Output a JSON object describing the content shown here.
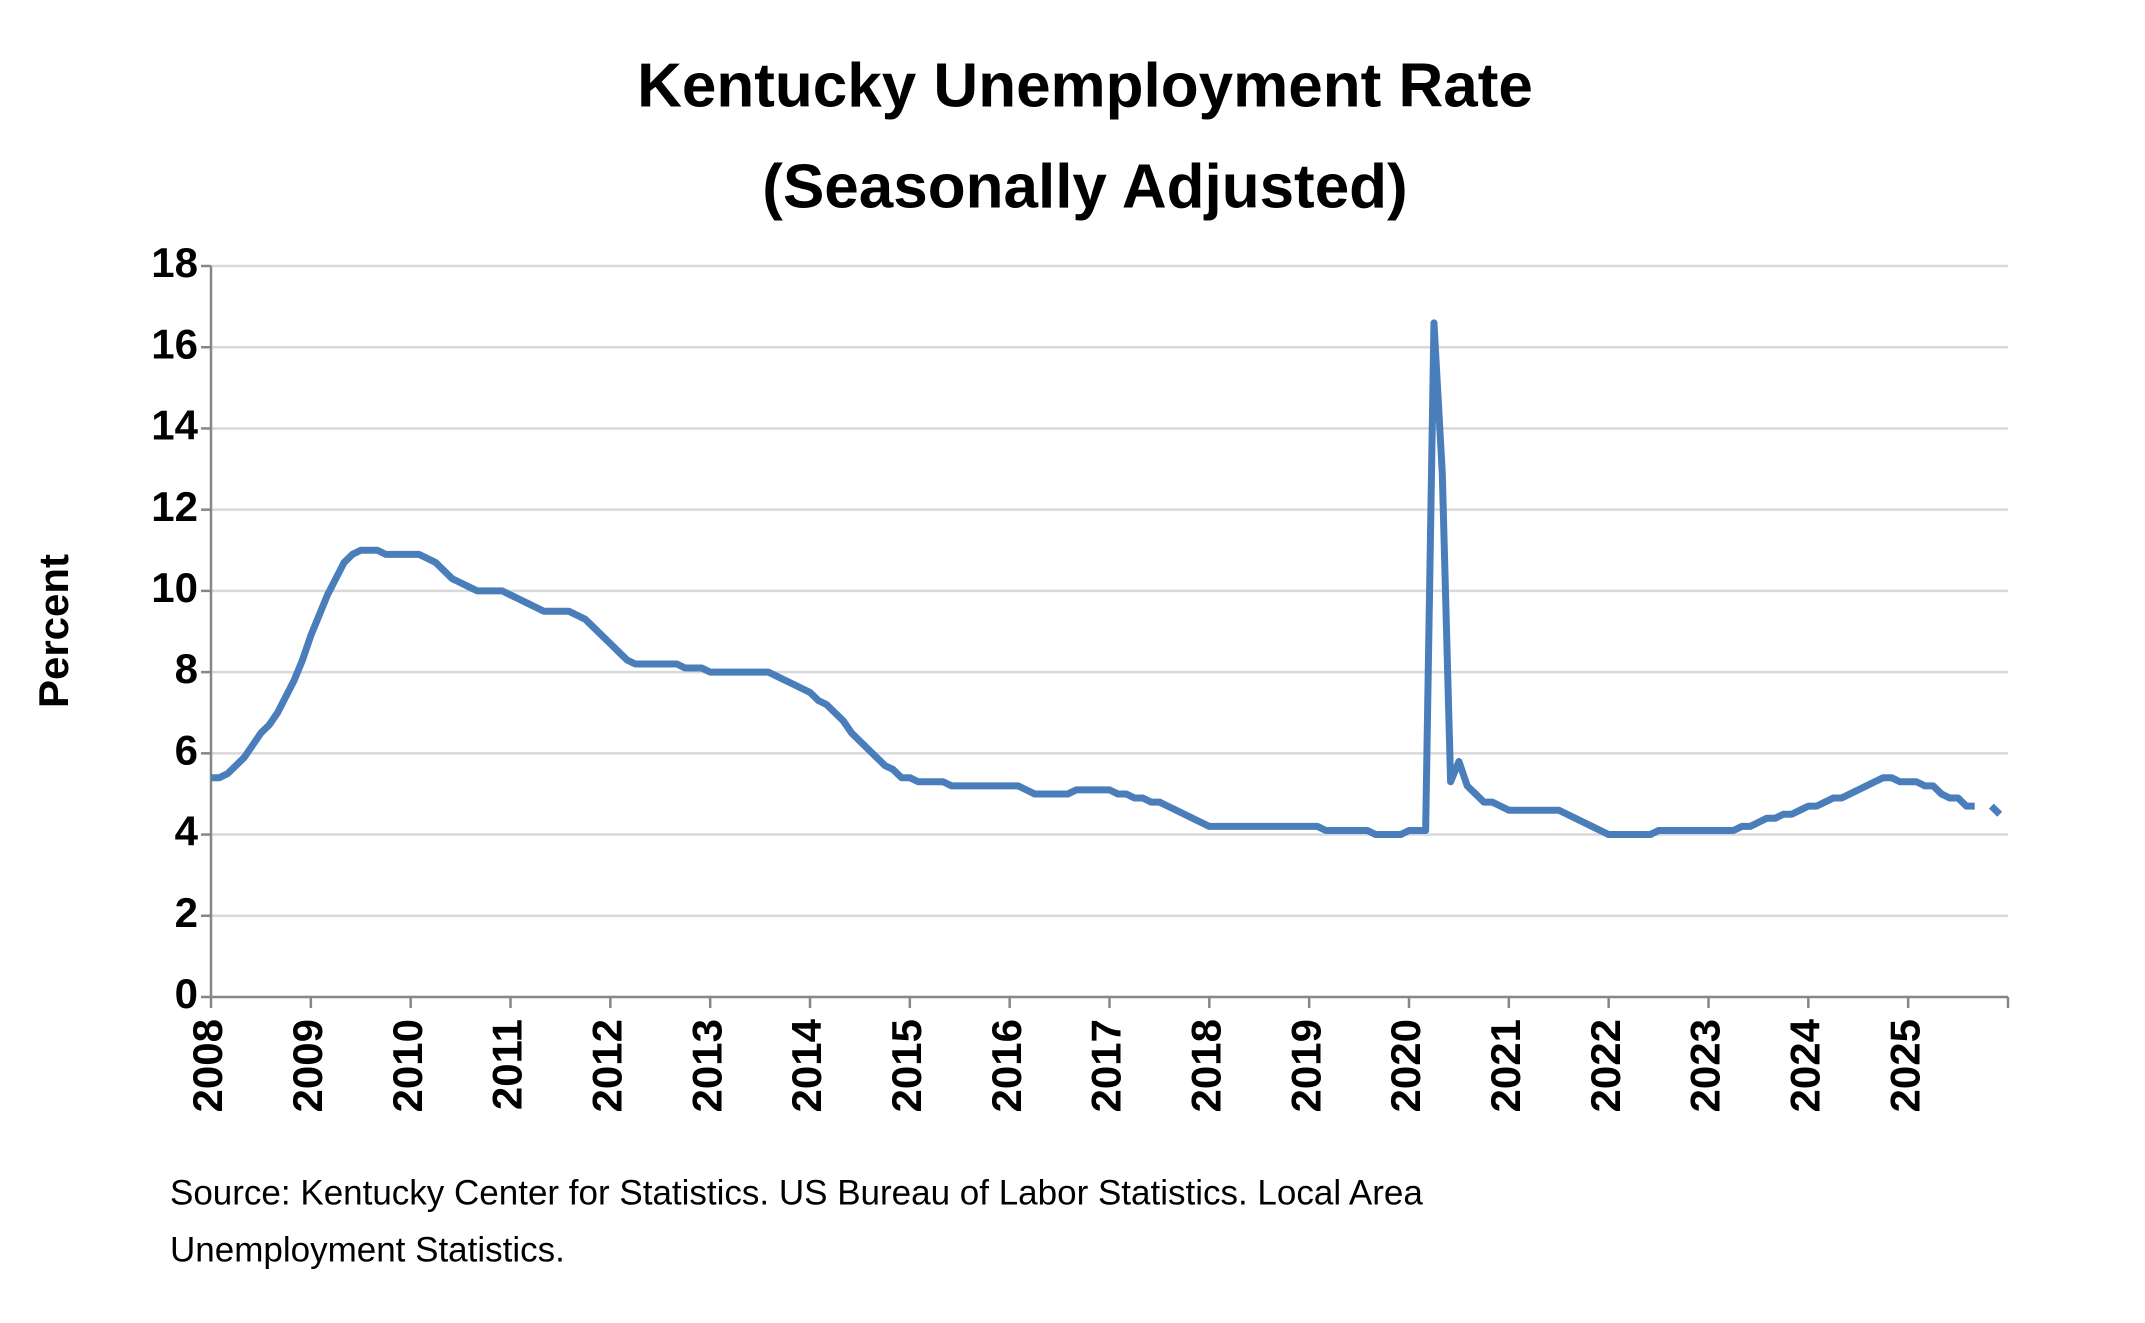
{
  "chart_data": {
    "type": "line",
    "title": [
      "Kentucky Unemployment Rate",
      "(Seasonally Adjusted)"
    ],
    "ylabel": "Percent",
    "source": [
      "Source: Kentucky Center for Statistics. US Bureau of Labor Statistics. Local Area",
      "Unemployment Statistics."
    ],
    "categories": [
      "2008",
      null,
      null,
      null,
      null,
      null,
      null,
      null,
      null,
      null,
      null,
      null,
      "2009",
      null,
      null,
      null,
      null,
      null,
      null,
      null,
      null,
      null,
      null,
      null,
      "2010",
      null,
      null,
      null,
      null,
      null,
      null,
      null,
      null,
      null,
      null,
      null,
      "2011",
      null,
      null,
      null,
      null,
      null,
      null,
      null,
      null,
      null,
      null,
      null,
      "2012",
      null,
      null,
      null,
      null,
      null,
      null,
      null,
      null,
      null,
      null,
      null,
      "2013",
      null,
      null,
      null,
      null,
      null,
      null,
      null,
      null,
      null,
      null,
      null,
      "2014",
      null,
      null,
      null,
      null,
      null,
      null,
      null,
      null,
      null,
      null,
      null,
      "2015",
      null,
      null,
      null,
      null,
      null,
      null,
      null,
      null,
      null,
      null,
      null,
      "2016",
      null,
      null,
      null,
      null,
      null,
      null,
      null,
      null,
      null,
      null,
      null,
      "2017",
      null,
      null,
      null,
      null,
      null,
      null,
      null,
      null,
      null,
      null,
      null,
      "2018",
      null,
      null,
      null,
      null,
      null,
      null,
      null,
      null,
      null,
      null,
      null,
      "2019",
      null,
      null,
      null,
      null,
      null,
      null,
      null,
      null,
      null,
      null,
      null,
      "2020",
      null,
      null,
      null,
      null,
      null,
      null,
      null,
      null,
      null,
      null,
      null,
      "2021",
      null,
      null,
      null,
      null,
      null,
      null,
      null,
      null,
      null,
      null,
      null,
      "2022",
      null,
      null,
      null,
      null,
      null,
      null,
      null,
      null,
      null,
      null,
      null,
      "2023",
      null,
      null,
      null,
      null,
      null,
      null,
      null,
      null,
      null,
      null,
      null,
      "2024",
      null,
      null,
      null,
      null,
      null,
      null,
      null,
      null,
      null,
      null,
      null,
      "2025",
      null,
      null,
      null,
      null,
      null,
      null,
      null,
      null,
      null,
      null,
      null
    ],
    "series": [
      {
        "name": "Unemployment rate",
        "color": "#4a7ebb",
        "values": [
          5.4,
          5.4,
          5.5,
          5.7,
          5.9,
          6.2,
          6.5,
          6.7,
          7.0,
          7.4,
          7.8,
          8.3,
          8.9,
          9.4,
          9.9,
          10.3,
          10.7,
          10.9,
          11.0,
          11.0,
          11.0,
          10.9,
          10.9,
          10.9,
          10.9,
          10.9,
          10.8,
          10.7,
          10.5,
          10.3,
          10.2,
          10.1,
          10.0,
          10.0,
          10.0,
          10.0,
          9.9,
          9.8,
          9.7,
          9.6,
          9.5,
          9.5,
          9.5,
          9.5,
          9.4,
          9.3,
          9.1,
          8.9,
          8.7,
          8.5,
          8.3,
          8.2,
          8.2,
          8.2,
          8.2,
          8.2,
          8.2,
          8.1,
          8.1,
          8.1,
          8.0,
          8.0,
          8.0,
          8.0,
          8.0,
          8.0,
          8.0,
          8.0,
          7.9,
          7.8,
          7.7,
          7.6,
          7.5,
          7.3,
          7.2,
          7.0,
          6.8,
          6.5,
          6.3,
          6.1,
          5.9,
          5.7,
          5.6,
          5.4,
          5.4,
          5.3,
          5.3,
          5.3,
          5.3,
          5.2,
          5.2,
          5.2,
          5.2,
          5.2,
          5.2,
          5.2,
          5.2,
          5.2,
          5.1,
          5.0,
          5.0,
          5.0,
          5.0,
          5.0,
          5.1,
          5.1,
          5.1,
          5.1,
          5.1,
          5.0,
          5.0,
          4.9,
          4.9,
          4.8,
          4.8,
          4.7,
          4.6,
          4.5,
          4.4,
          4.3,
          4.2,
          4.2,
          4.2,
          4.2,
          4.2,
          4.2,
          4.2,
          4.2,
          4.2,
          4.2,
          4.2,
          4.2,
          4.2,
          4.2,
          4.1,
          4.1,
          4.1,
          4.1,
          4.1,
          4.1,
          4.0,
          4.0,
          4.0,
          4.0,
          4.1,
          4.1,
          4.1,
          16.6,
          12.9,
          5.3,
          5.8,
          5.2,
          5.0,
          4.8,
          4.8,
          4.7,
          4.6,
          4.6,
          4.6,
          4.6,
          4.6,
          4.6,
          4.6,
          4.5,
          4.4,
          4.3,
          4.2,
          4.1,
          4.0,
          4.0,
          4.0,
          4.0,
          4.0,
          4.0,
          4.1,
          4.1,
          4.1,
          4.1,
          4.1,
          4.1,
          4.1,
          4.1,
          4.1,
          4.1,
          4.2,
          4.2,
          4.3,
          4.4,
          4.4,
          4.5,
          4.5,
          4.6,
          4.7,
          4.7,
          4.8,
          4.9,
          4.9,
          5.0,
          5.1,
          5.2,
          5.3,
          5.4,
          5.4,
          5.3,
          5.3,
          5.3,
          5.2,
          5.2,
          5.0,
          4.9,
          4.9,
          4.7,
          4.7,
          null,
          4.7,
          4.5
        ]
      }
    ],
    "ylim": [
      0,
      18
    ],
    "yticks": [
      0,
      2,
      4,
      6,
      8,
      10,
      12,
      14,
      16,
      18
    ],
    "grid": true
  }
}
